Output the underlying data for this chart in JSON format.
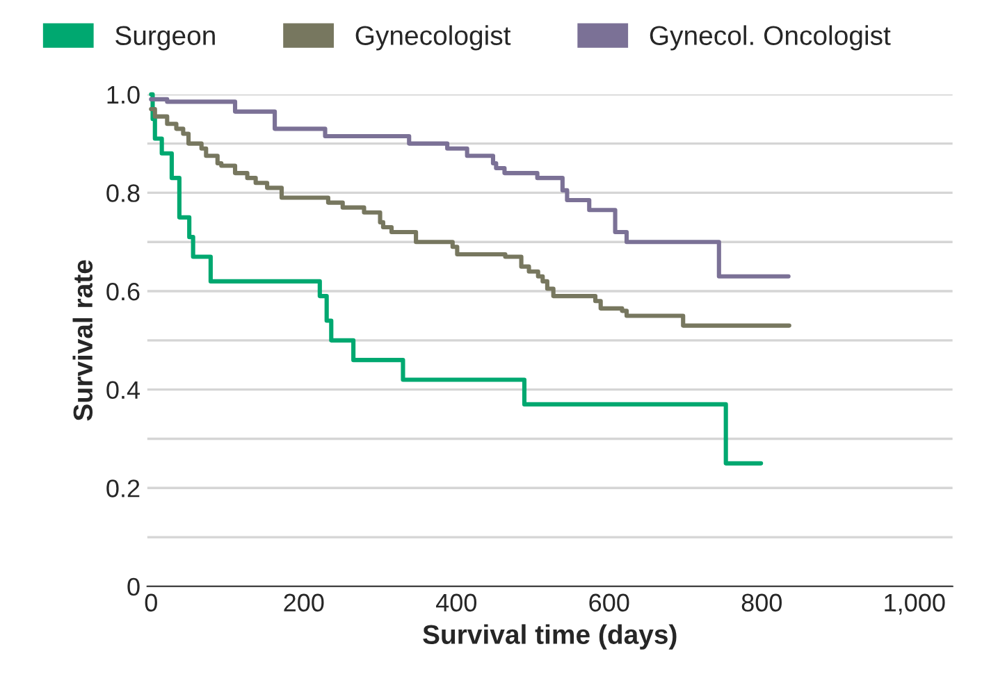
{
  "chart_data": {
    "type": "step",
    "xlabel": "Survival time (days)",
    "ylabel": "Survival rate",
    "series": [
      {
        "name": "Surgeon",
        "color": "#00a870",
        "x": [
          0,
          2,
          5,
          14,
          27,
          37,
          50,
          55,
          78,
          221,
          230,
          236,
          265,
          330,
          489,
          753,
          799
        ],
        "values": [
          1.0,
          0.95,
          0.91,
          0.88,
          0.83,
          0.75,
          0.71,
          0.67,
          0.62,
          0.59,
          0.54,
          0.5,
          0.46,
          0.42,
          0.37,
          0.25,
          0.25
        ]
      },
      {
        "name": "Gynecologist",
        "color": "#77775f",
        "x": [
          0,
          5,
          21,
          33,
          42,
          49,
          66,
          72,
          87,
          92,
          110,
          126,
          137,
          152,
          171,
          232,
          251,
          279,
          300,
          304,
          315,
          347,
          395,
          401,
          464,
          485,
          495,
          507,
          513,
          519,
          527,
          582,
          589,
          617,
          623,
          697,
          836
        ],
        "values": [
          0.97,
          0.955,
          0.94,
          0.93,
          0.92,
          0.9,
          0.89,
          0.875,
          0.86,
          0.855,
          0.84,
          0.83,
          0.82,
          0.81,
          0.79,
          0.78,
          0.77,
          0.76,
          0.74,
          0.73,
          0.72,
          0.7,
          0.69,
          0.675,
          0.67,
          0.65,
          0.64,
          0.63,
          0.62,
          0.605,
          0.59,
          0.58,
          0.565,
          0.56,
          0.55,
          0.53,
          0.53
        ]
      },
      {
        "name": "Gynecol. Oncologist",
        "color": "#7b7196",
        "x": [
          0,
          21,
          110,
          162,
          228,
          338,
          388,
          414,
          448,
          452,
          463,
          506,
          539,
          545,
          574,
          608,
          623,
          744,
          835
        ],
        "values": [
          0.99,
          0.985,
          0.965,
          0.93,
          0.915,
          0.9,
          0.89,
          0.875,
          0.86,
          0.85,
          0.84,
          0.83,
          0.805,
          0.785,
          0.765,
          0.72,
          0.7,
          0.63,
          0.63
        ]
      }
    ],
    "xlim": [
      -5,
      1050
    ],
    "ylim": [
      0,
      1.0
    ],
    "xticks": [
      0,
      200,
      400,
      600,
      800,
      {
        "value": 1000,
        "label": "1,000"
      }
    ],
    "yticks": [
      0,
      {
        "value": 0.1,
        "label": null
      },
      0.2,
      {
        "value": 0.3,
        "label": null
      },
      0.4,
      {
        "value": 0.5,
        "label": null
      },
      0.6,
      {
        "value": 0.7,
        "label": null
      },
      0.8,
      {
        "value": 0.9,
        "label": null
      },
      {
        "value": 1.0,
        "label": "1.0"
      }
    ],
    "grid": "y",
    "legend": "top"
  }
}
